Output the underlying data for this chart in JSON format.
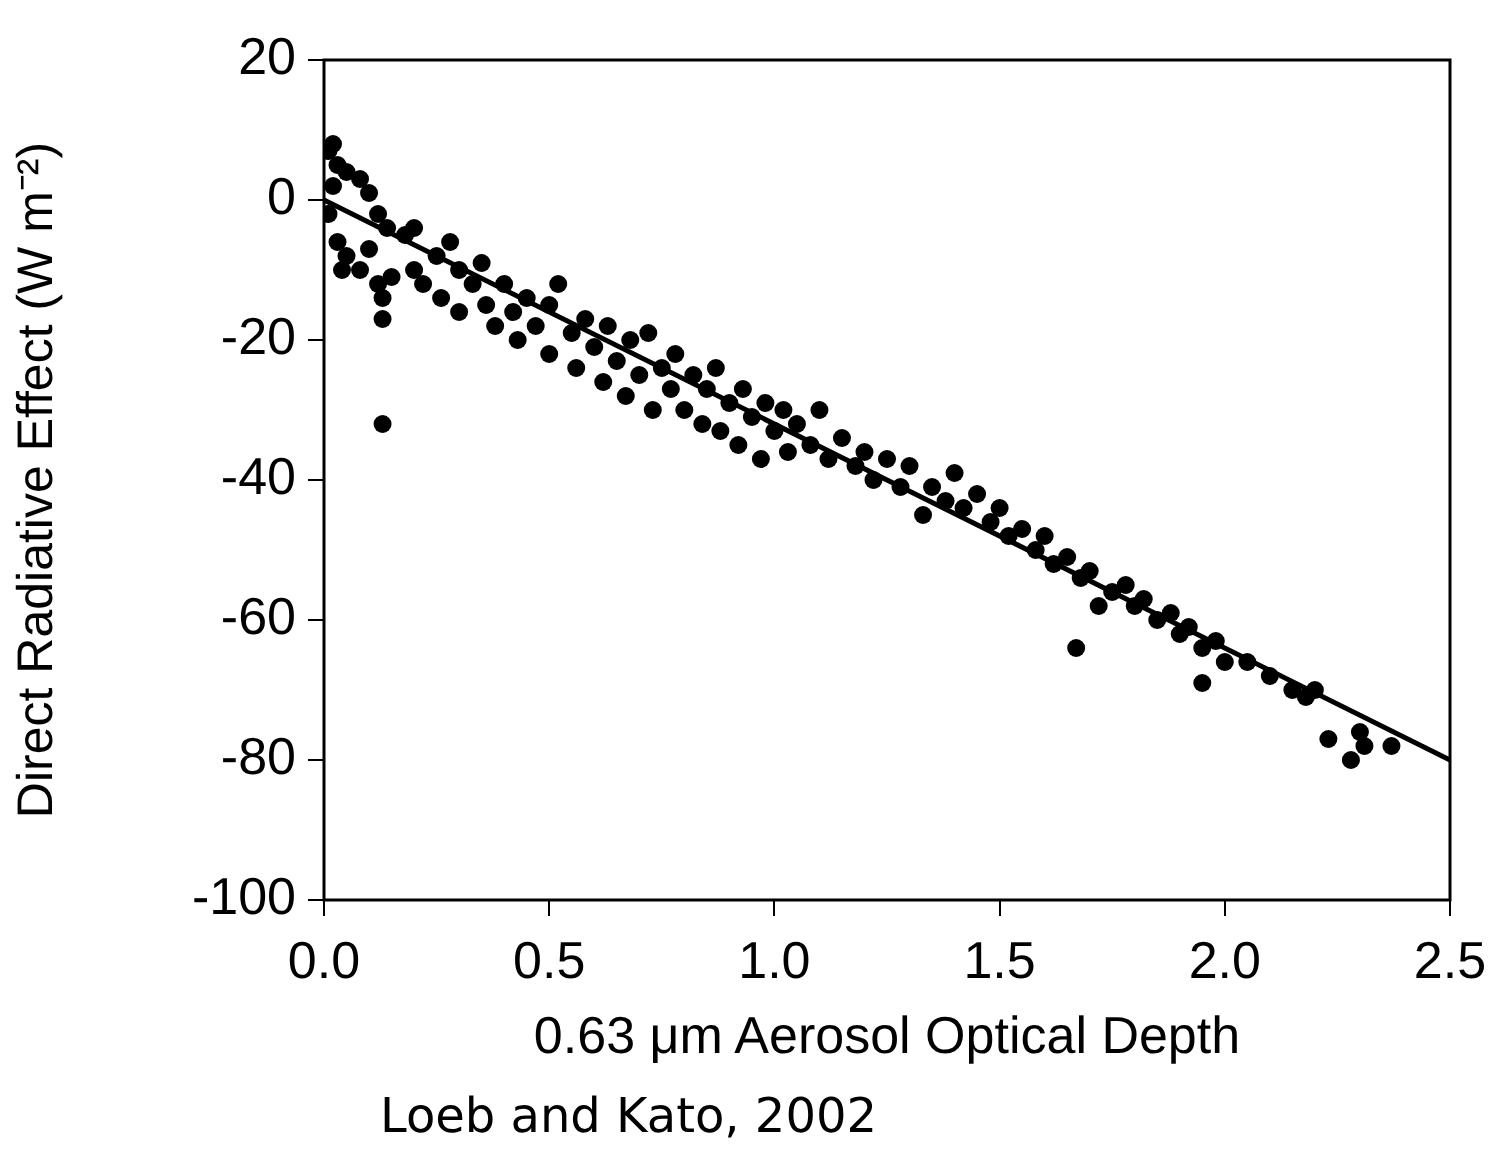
{
  "chart_data": {
    "type": "scatter",
    "xlabel": "0.63 μm Aerosol Optical Depth",
    "ylabel": "Direct Radiative Effect (W m⁻²)",
    "annotations": [
      "Loeb and Kato, 2002"
    ],
    "xlim": [
      0,
      2.5
    ],
    "ylim": [
      -100,
      20
    ],
    "xticks": [
      {
        "value": 0,
        "label": "0.0"
      },
      {
        "value": 0.5,
        "label": "0.5"
      },
      {
        "value": 1,
        "label": "1.0"
      },
      {
        "value": 1.5,
        "label": "1.5"
      },
      {
        "value": 2,
        "label": "2.0"
      },
      {
        "value": 2.5,
        "label": "2.5"
      }
    ],
    "yticks": [
      -100,
      -80,
      -60,
      -40,
      -20,
      0,
      20
    ],
    "series": [
      {
        "marker": "circle",
        "color": "#000000",
        "x": [
          0.01,
          0.02,
          0.03,
          0.05,
          0.02,
          0.01,
          0.03,
          0.05,
          0.04,
          0.08,
          0.1,
          0.08,
          0.1,
          0.12,
          0.14,
          0.15,
          0.12,
          0.13,
          0.13,
          0.13,
          0.18,
          0.2,
          0.2,
          0.22,
          0.25,
          0.26,
          0.28,
          0.3,
          0.3,
          0.33,
          0.35,
          0.36,
          0.38,
          0.4,
          0.42,
          0.43,
          0.45,
          0.47,
          0.5,
          0.5,
          0.52,
          0.55,
          0.56,
          0.58,
          0.6,
          0.62,
          0.63,
          0.65,
          0.67,
          0.68,
          0.7,
          0.72,
          0.73,
          0.75,
          0.77,
          0.78,
          0.8,
          0.82,
          0.84,
          0.85,
          0.87,
          0.88,
          0.9,
          0.92,
          0.93,
          0.95,
          0.97,
          0.98,
          1.0,
          1.02,
          1.03,
          1.05,
          1.08,
          1.1,
          1.12,
          1.15,
          1.18,
          1.2,
          1.22,
          1.25,
          1.28,
          1.3,
          1.33,
          1.35,
          1.38,
          1.4,
          1.42,
          1.45,
          1.48,
          1.5,
          1.52,
          1.55,
          1.58,
          1.6,
          1.62,
          1.65,
          1.67,
          1.68,
          1.7,
          1.72,
          1.75,
          1.78,
          1.8,
          1.82,
          1.85,
          1.88,
          1.9,
          1.92,
          1.95,
          1.95,
          1.98,
          2.0,
          2.05,
          2.1,
          2.15,
          2.18,
          2.2,
          2.23,
          2.28,
          2.3,
          2.31,
          2.37
        ],
        "values": [
          7,
          8,
          5,
          4,
          2,
          -2,
          -6,
          -8,
          -10,
          -10,
          -7,
          3,
          1,
          -2,
          -4,
          -11,
          -12,
          -17,
          -14,
          -32,
          -5,
          -4,
          -10,
          -12,
          -8,
          -14,
          -6,
          -10,
          -16,
          -12,
          -9,
          -15,
          -18,
          -12,
          -16,
          -20,
          -14,
          -18,
          -22,
          -15,
          -12,
          -19,
          -24,
          -17,
          -21,
          -26,
          -18,
          -23,
          -28,
          -20,
          -25,
          -19,
          -30,
          -24,
          -27,
          -22,
          -30,
          -25,
          -32,
          -27,
          -24,
          -33,
          -29,
          -35,
          -27,
          -31,
          -37,
          -29,
          -33,
          -30,
          -36,
          -32,
          -35,
          -30,
          -37,
          -34,
          -38,
          -36,
          -40,
          -37,
          -41,
          -38,
          -45,
          -41,
          -43,
          -39,
          -44,
          -42,
          -46,
          -44,
          -48,
          -47,
          -50,
          -48,
          -52,
          -51,
          -64,
          -54,
          -53,
          -58,
          -56,
          -55,
          -58,
          -57,
          -60,
          -59,
          -62,
          -61,
          -64,
          -69,
          -63,
          -66,
          -66,
          -68,
          -70,
          -71,
          -70,
          -77,
          -80,
          -76,
          -78,
          -78
        ]
      },
      {
        "type": "line",
        "color": "#000000",
        "line_style": "solid",
        "x": [
          0,
          2.5
        ],
        "values": [
          0,
          -80
        ]
      }
    ]
  }
}
